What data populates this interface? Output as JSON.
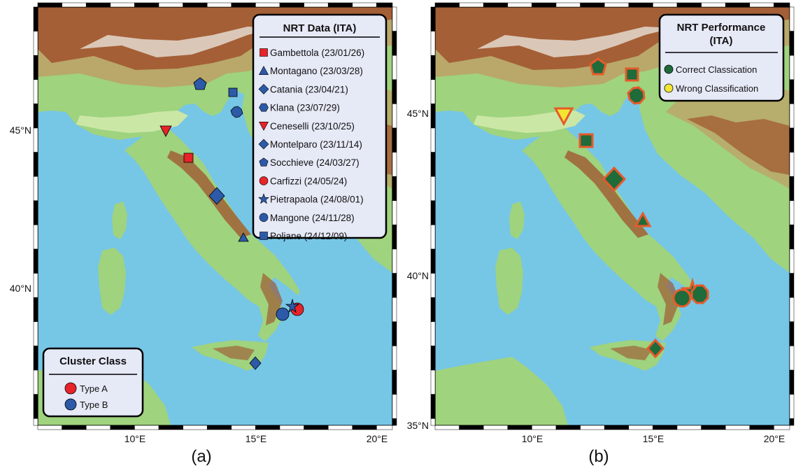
{
  "panels": [
    {
      "caption": "(a)",
      "legend_main": {
        "title": "NRT Data (ITA)",
        "items": [
          {
            "label": "Gambettola (23/01/26)",
            "symbol": "square",
            "color": "#e8232a"
          },
          {
            "label": "Montagano (23/03/28)",
            "symbol": "triangle",
            "color": "#2c5aa8"
          },
          {
            "label": "Catania (23/04/21)",
            "symbol": "diamond",
            "color": "#2c5aa8"
          },
          {
            "label": "Klana (23/07/29)",
            "symbol": "hexagon",
            "color": "#2c5aa8"
          },
          {
            "label": "Ceneselli (23/10/25)",
            "symbol": "inverted-triangle",
            "color": "#e8232a"
          },
          {
            "label": "Montelparo (23/11/14)",
            "symbol": "diamond",
            "color": "#2c5aa8"
          },
          {
            "label": "Socchieve (24/03/27)",
            "symbol": "pentagon",
            "color": "#2c5aa8"
          },
          {
            "label": "Carfizzi (24/05/24)",
            "symbol": "circle",
            "color": "#e8232a"
          },
          {
            "label": "Pietrapaola (24/08/01)",
            "symbol": "star",
            "color": "#2c5aa8"
          },
          {
            "label": "Mangone (24/11/28)",
            "symbol": "circle",
            "color": "#2c5aa8"
          },
          {
            "label": "Poljane (24/12/09)",
            "symbol": "square",
            "color": "#2c5aa8"
          }
        ]
      },
      "legend_secondary": {
        "title": "Cluster Class",
        "items": [
          {
            "label": "Type A",
            "symbol": "circle",
            "color": "#e8232a"
          },
          {
            "label": "Type B",
            "symbol": "circle",
            "color": "#2c5aa8"
          }
        ]
      },
      "axis": {
        "x_ticks": [
          "10°E",
          "15°E",
          "20°E"
        ],
        "y_ticks": [
          "45°N",
          "40°N"
        ]
      }
    },
    {
      "caption": "(b)",
      "legend_main": {
        "title_line1": "NRT Performance",
        "title_line2": "(ITA)",
        "items": [
          {
            "label": "Correct Classication",
            "symbol": "circle",
            "color": "#1f6b3a"
          },
          {
            "label": "Wrong Classification",
            "symbol": "circle",
            "color": "#f3e633"
          }
        ]
      },
      "axis": {
        "x_ticks": [
          "10°E",
          "15°E",
          "20°E"
        ],
        "y_ticks": [
          "45°N",
          "40°N",
          "35°N"
        ]
      }
    }
  ],
  "colors": {
    "sea": "#76c6e6",
    "lowland": "#9fd37e",
    "hills": "#c9c06a",
    "mountains": "#a0522d",
    "snow": "#e8e1d8",
    "red_marker": "#e8232a",
    "blue_marker": "#2c5aa8",
    "correct": "#1f6b3a",
    "wrong": "#f3e633",
    "outline_b": "#e65a2a"
  }
}
